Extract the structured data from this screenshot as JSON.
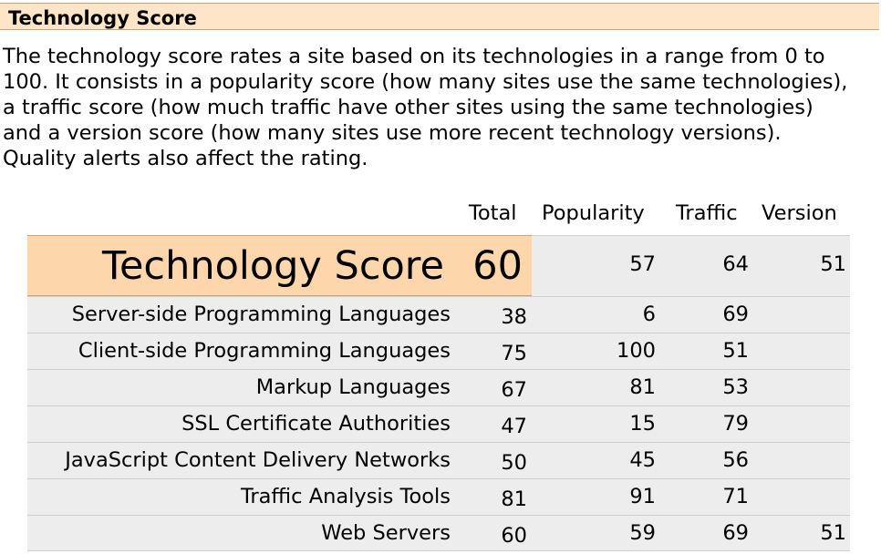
{
  "header": {
    "title": "Technology Score"
  },
  "intro": "The technology score rates a site based on its technologies in a range from 0 to 100. It consists in a popularity score (how many sites use the same technologies), a traffic score (how much traffic have other sites using the same technologies) and a version score (how many sites use more recent technology versions). Quality alerts also affect the rating.",
  "columns": {
    "total": "Total",
    "popularity": "Popularity",
    "traffic": "Traffic",
    "version": "Version"
  },
  "summary": {
    "label": "Technology Score",
    "total": "60",
    "popularity": "57",
    "traffic": "64",
    "version": "51"
  },
  "rows": [
    {
      "name": "Server-side Programming Languages",
      "total": "38",
      "popularity": "6",
      "traffic": "69",
      "version": ""
    },
    {
      "name": "Client-side Programming Languages",
      "total": "75",
      "popularity": "100",
      "traffic": "51",
      "version": ""
    },
    {
      "name": "Markup Languages",
      "total": "67",
      "popularity": "81",
      "traffic": "53",
      "version": ""
    },
    {
      "name": "SSL Certificate Authorities",
      "total": "47",
      "popularity": "15",
      "traffic": "79",
      "version": ""
    },
    {
      "name": "JavaScript Content Delivery Networks",
      "total": "50",
      "popularity": "45",
      "traffic": "56",
      "version": ""
    },
    {
      "name": "Traffic Analysis Tools",
      "total": "81",
      "popularity": "91",
      "traffic": "71",
      "version": ""
    },
    {
      "name": "Web Servers",
      "total": "60",
      "popularity": "59",
      "traffic": "69",
      "version": "51"
    }
  ]
}
